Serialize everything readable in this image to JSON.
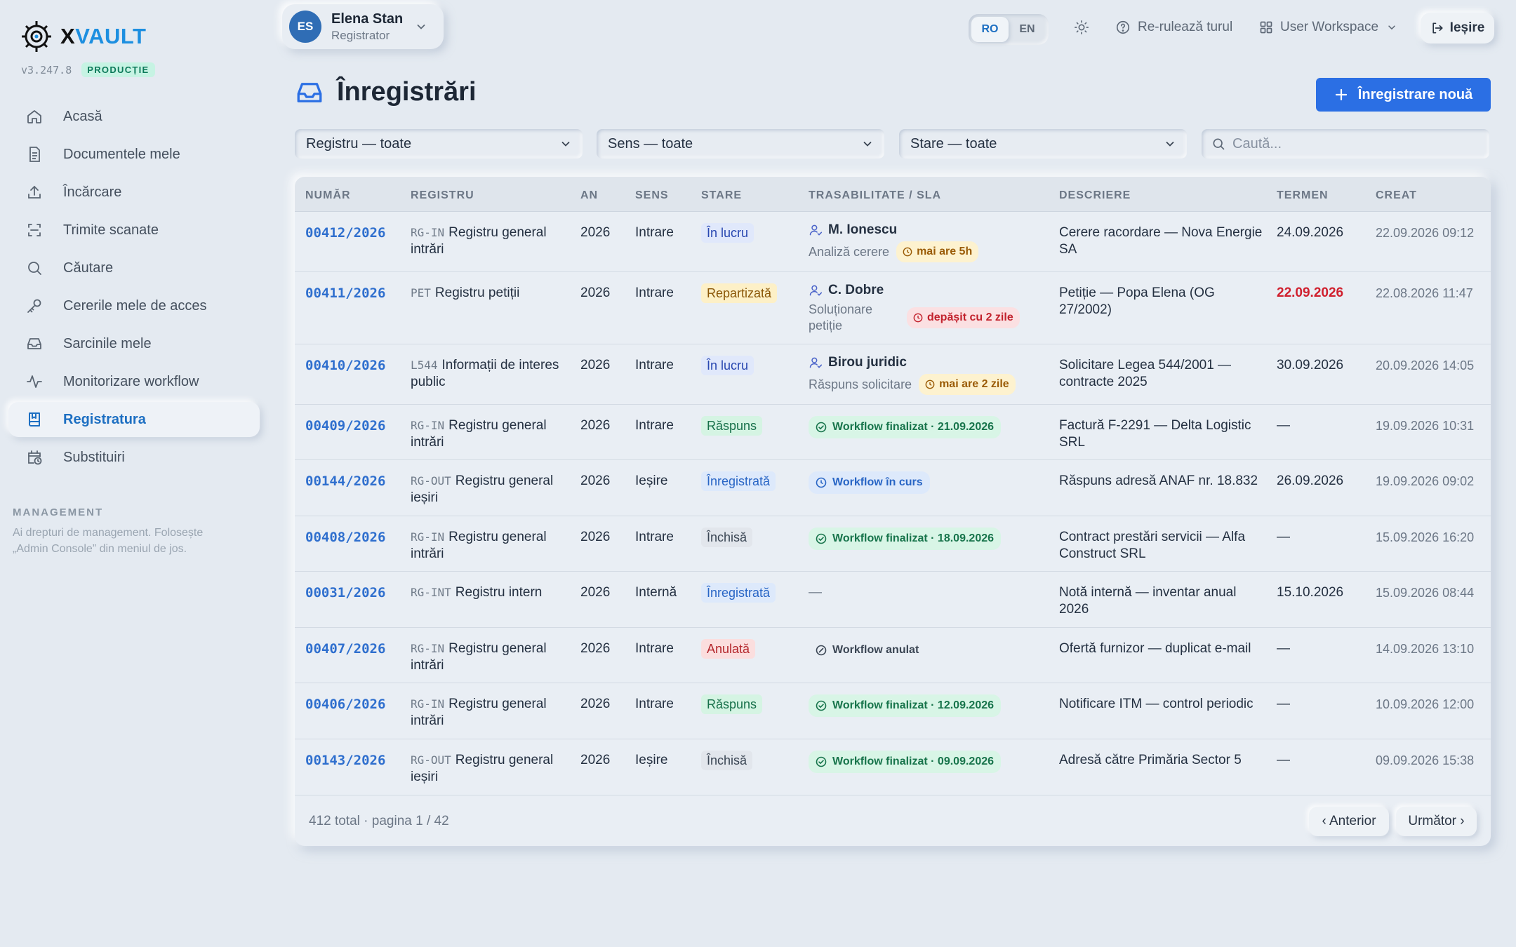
{
  "app": {
    "brand_x": "X",
    "brand_rest": "VAULT",
    "version": "v3.247.8",
    "env_badge": "PRODUCȚIE"
  },
  "sidebar": {
    "items": [
      {
        "label": "Acasă",
        "icon": "home-icon"
      },
      {
        "label": "Documentele mele",
        "icon": "document-icon"
      },
      {
        "label": "Încărcare",
        "icon": "upload-icon"
      },
      {
        "label": "Trimite scanate",
        "icon": "scan-icon"
      },
      {
        "label": "Căutare",
        "icon": "search-icon"
      },
      {
        "label": "Cererile mele de acces",
        "icon": "key-icon"
      },
      {
        "label": "Sarcinile mele",
        "icon": "inbox-icon"
      },
      {
        "label": "Monitorizare workflow",
        "icon": "activity-icon"
      },
      {
        "label": "Registratura",
        "icon": "book-icon",
        "active": true
      },
      {
        "label": "Substituiri",
        "icon": "calendar-clock-icon"
      }
    ],
    "management_title": "MANAGEMENT",
    "management_note": "Ai drepturi de management. Folosește „Admin Console” din meniul de jos."
  },
  "header": {
    "user": {
      "initials": "ES",
      "name": "Elena Stan",
      "role": "Registrator"
    },
    "lang": {
      "ro": "RO",
      "en": "EN",
      "active": "RO"
    },
    "tour_label": "Re-rulează turul",
    "workspace_label": "User Workspace",
    "exit_label": "Ieșire"
  },
  "page": {
    "title": "Înregistrări",
    "new_button": "Înregistrare nouă"
  },
  "filters": {
    "registry": "Registru — toate",
    "direction": "Sens — toate",
    "status": "Stare — toate",
    "search_placeholder": "Caută..."
  },
  "table": {
    "headers": {
      "number": "NUMĂR",
      "registry": "REGISTRU",
      "year": "AN",
      "direction": "SENS",
      "status": "STARE",
      "trace": "TRASABILITATE / SLA",
      "description": "DESCRIERE",
      "deadline": "TERMEN",
      "created": "CREAT"
    },
    "rows": [
      {
        "number": "00412/2026",
        "reg_code": "RG-IN",
        "reg_name": "Registru general intrări",
        "year": "2026",
        "direction": "Intrare",
        "status": "În lucru",
        "owner": "M. Ionescu",
        "task": "Analiză cerere",
        "sla": "mai are 5h",
        "description": "Cerere racordare — Nova Energie SA",
        "deadline": "24.09.2026",
        "created": "22.09.2026 09:12"
      },
      {
        "number": "00411/2026",
        "reg_code": "PET",
        "reg_name": "Registru petiții",
        "year": "2026",
        "direction": "Intrare",
        "status": "Repartizată",
        "owner": "C. Dobre",
        "task": "Soluționare petiție",
        "sla": "depășit cu 2 zile",
        "description": "Petiție — Popa Elena (OG 27/2002)",
        "deadline": "22.09.2026",
        "created": "22.08.2026 11:47"
      },
      {
        "number": "00410/2026",
        "reg_code": "L544",
        "reg_name": "Informații de interes public",
        "year": "2026",
        "direction": "Intrare",
        "status": "În lucru",
        "owner": "Birou juridic",
        "task": "Răspuns solicitare",
        "sla": "mai are 2 zile",
        "description": "Solicitare Legea 544/2001 — contracte 2025",
        "deadline": "30.09.2026",
        "created": "20.09.2026 14:05"
      },
      {
        "number": "00409/2026",
        "reg_code": "RG-IN",
        "reg_name": "Registru general intrări",
        "year": "2026",
        "direction": "Intrare",
        "status": "Răspuns",
        "workflow": "Workflow finalizat · 21.09.2026",
        "description": "Factură F-2291 — Delta Logistic SRL",
        "deadline": "—",
        "created": "19.09.2026 10:31"
      },
      {
        "number": "00144/2026",
        "reg_code": "RG-OUT",
        "reg_name": "Registru general ieșiri",
        "year": "2026",
        "direction": "Ieșire",
        "status": "Înregistrată",
        "workflow": "Workflow în curs",
        "description": "Răspuns adresă ANAF nr. 18.832",
        "deadline": "26.09.2026",
        "created": "19.09.2026 09:02"
      },
      {
        "number": "00408/2026",
        "reg_code": "RG-IN",
        "reg_name": "Registru general intrări",
        "year": "2026",
        "direction": "Intrare",
        "status": "Închisă",
        "workflow": "Workflow finalizat · 18.09.2026",
        "description": "Contract prestări servicii — Alfa Construct SRL",
        "deadline": "—",
        "created": "15.09.2026 16:20"
      },
      {
        "number": "00031/2026",
        "reg_code": "RG-INT",
        "reg_name": "Registru intern",
        "year": "2026",
        "direction": "Internă",
        "status": "Înregistrată",
        "workflow": "—",
        "description": "Notă internă — inventar anual 2026",
        "deadline": "15.10.2026",
        "created": "15.09.2026 08:44"
      },
      {
        "number": "00407/2026",
        "reg_code": "RG-IN",
        "reg_name": "Registru general intrări",
        "year": "2026",
        "direction": "Intrare",
        "status": "Anulată",
        "workflow": "Workflow anulat",
        "description": "Ofertă furnizor — duplicat e-mail",
        "deadline": "—",
        "created": "14.09.2026 13:10"
      },
      {
        "number": "00406/2026",
        "reg_code": "RG-IN",
        "reg_name": "Registru general intrări",
        "year": "2026",
        "direction": "Intrare",
        "status": "Răspuns",
        "workflow": "Workflow finalizat · 12.09.2026",
        "description": "Notificare ITM — control periodic",
        "deadline": "—",
        "created": "10.09.2026 12:00"
      },
      {
        "number": "00143/2026",
        "reg_code": "RG-OUT",
        "reg_name": "Registru general ieșiri",
        "year": "2026",
        "direction": "Ieșire",
        "status": "Închisă",
        "workflow": "Workflow finalizat · 09.09.2026",
        "description": "Adresă către Primăria Sector 5",
        "deadline": "—",
        "created": "09.09.2026 15:38"
      }
    ]
  },
  "pagination": {
    "summary": "412 total · pagina 1 / 42",
    "prev": "‹ Anterior",
    "next": "Următor ›"
  },
  "colors": {
    "accent": "#2b6fe4",
    "brand_blue": "#1d8fe0",
    "link": "#2f6fce",
    "danger": "#d0202e",
    "background": "#e4eaf1"
  }
}
